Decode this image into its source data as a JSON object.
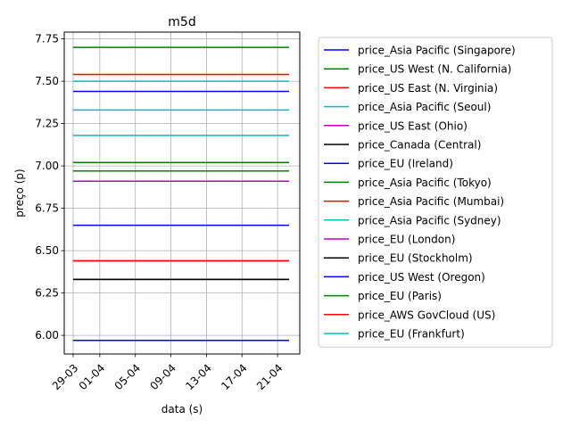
{
  "chart_data": {
    "type": "line",
    "title": "m5d",
    "xlabel": "data (s)",
    "ylabel": "preço (p)",
    "xlim": [
      -1,
      25.5
    ],
    "ylim": [
      5.89,
      7.79
    ],
    "x_ticks": [
      {
        "x": 0,
        "label": "29-03"
      },
      {
        "x": 3,
        "label": "01-04"
      },
      {
        "x": 7,
        "label": "05-04"
      },
      {
        "x": 11,
        "label": "09-04"
      },
      {
        "x": 15,
        "label": "13-04"
      },
      {
        "x": 19,
        "label": "17-04"
      },
      {
        "x": 23,
        "label": "21-04"
      }
    ],
    "y_ticks": [
      6.0,
      6.25,
      6.5,
      6.75,
      7.0,
      7.25,
      7.5,
      7.75
    ],
    "y_tick_labels": [
      "6.00",
      "6.25",
      "6.50",
      "6.75",
      "7.00",
      "7.25",
      "7.50",
      "7.75"
    ],
    "grid": true,
    "legend_position": "outside-right",
    "x_range": [
      0,
      24.3
    ],
    "series": [
      {
        "name": "price_Asia Pacific (Singapore)",
        "color": "#0000ff",
        "value": 7.44
      },
      {
        "name": "price_US West (N. California)",
        "color": "#008000",
        "value": 7.7
      },
      {
        "name": "price_US East (N. Virginia)",
        "color": "#ff0000",
        "value": 7.54
      },
      {
        "name": "price_Asia Pacific (Seoul)",
        "color": "#00bfbf",
        "value": 7.33
      },
      {
        "name": "price_US East (Ohio)",
        "color": "#bf00bf",
        "value": 6.91
      },
      {
        "name": "price_Canada (Central)",
        "color": "#000000",
        "value": 6.33
      },
      {
        "name": "price_EU (Ireland)",
        "color": "#0000ff",
        "value": 6.65
      },
      {
        "name": "price_Asia Pacific (Tokyo)",
        "color": "#008000",
        "value": 6.97
      },
      {
        "name": "price_Asia Pacific (Mumbai)",
        "color": "#ff0000",
        "value": 6.44
      },
      {
        "name": "price_Asia Pacific (Sydney)",
        "color": "#00bfbf",
        "value": 7.18
      },
      {
        "name": "price_EU (London)",
        "color": "#bf00bf",
        "value": 6.91
      },
      {
        "name": "price_EU (Stockholm)",
        "color": "#000000",
        "value": 6.33
      },
      {
        "name": "price_US West (Oregon)",
        "color": "#0000ff",
        "value": 5.97
      },
      {
        "name": "price_EU (Paris)",
        "color": "#008000",
        "value": 7.02
      },
      {
        "name": "price_AWS GovCloud (US)",
        "color": "#ff0000",
        "value": 6.44
      },
      {
        "name": "price_EU (Frankfurt)",
        "color": "#00bfbf",
        "value": 7.5
      }
    ]
  }
}
